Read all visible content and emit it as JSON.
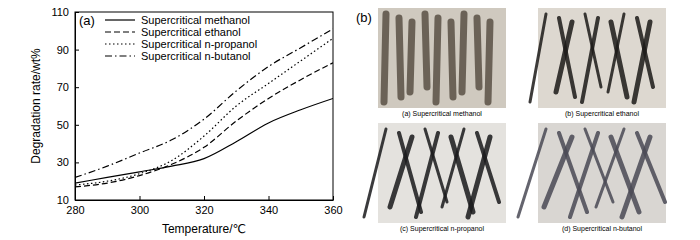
{
  "chart_data": {
    "type": "line",
    "annotations": [
      "(a)"
    ],
    "x_label": "Temperature/℃",
    "y_label": "Degradation rate/wt%",
    "x": [
      280,
      290,
      300,
      310,
      320,
      330,
      340,
      350,
      360
    ],
    "series": [
      {
        "name": "Supercritical methanol",
        "color": "#000000",
        "line_style": "solid",
        "values": [
          19,
          22,
          25,
          28,
          32,
          41,
          51,
          58,
          64
        ]
      },
      {
        "name": "Supercritical ethanol",
        "color": "#000000",
        "line_style": "dashed",
        "values": [
          17,
          19,
          23,
          29,
          38,
          52,
          64,
          74,
          83
        ]
      },
      {
        "name": "Supercritical n-propanol",
        "color": "#000000",
        "line_style": "dotted",
        "values": [
          18,
          20,
          24,
          31,
          44,
          60,
          72,
          84,
          96
        ]
      },
      {
        "name": "Supercritical n-butanol",
        "color": "#000000",
        "line_style": "dashdot",
        "values": [
          22,
          28,
          35,
          42,
          53,
          68,
          81,
          91,
          101
        ]
      }
    ],
    "xlim": [
      280,
      360
    ],
    "xticks": [
      280,
      300,
      320,
      340,
      360
    ],
    "ylim": [
      10,
      110
    ],
    "yticks": [
      10,
      30,
      50,
      70,
      90,
      110
    ],
    "legend": "upper left",
    "grid": false
  },
  "photos": {
    "label": "(b)",
    "items": [
      {
        "caption": "(a) Supercritical methanol"
      },
      {
        "caption": "(b) Supercritical ethanol"
      },
      {
        "caption": "(c) Supercritical n-propanol"
      },
      {
        "caption": "(d) Supercritical n-butanol"
      }
    ]
  }
}
